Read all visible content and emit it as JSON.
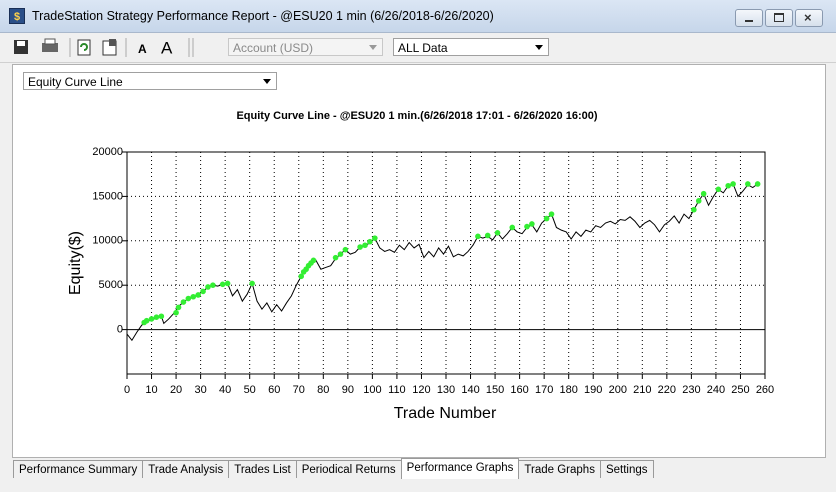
{
  "window": {
    "title": "TradeStation Strategy Performance Report - @ESU20 1 min (6/26/2018-6/26/2020)"
  },
  "toolbar": {
    "account": "Account (USD)",
    "range": "ALL Data"
  },
  "graph_selector": "Equity Curve Line",
  "tabs": [
    "Performance Summary",
    "Trade Analysis",
    "Trades List",
    "Periodical Returns",
    "Performance Graphs",
    "Trade Graphs",
    "Settings"
  ],
  "active_tab": 4,
  "chart_data": {
    "type": "line",
    "title": "Equity Curve Line - @ESU20 1 min.(6/26/2018 17:01 - 6/26/2020 16:00)",
    "x_label": "Trade Number",
    "y_label": "Equity($)",
    "xlim": [
      0,
      260
    ],
    "xticks": [
      0,
      10,
      20,
      30,
      40,
      50,
      60,
      70,
      80,
      90,
      100,
      110,
      120,
      130,
      140,
      150,
      160,
      170,
      180,
      190,
      200,
      210,
      220,
      230,
      240,
      250,
      260
    ],
    "ylim": [
      -5000,
      20000
    ],
    "yticks": [
      0,
      5000,
      10000,
      15000,
      20000
    ],
    "grid": true,
    "color": "#000000",
    "x": [
      0,
      2,
      4,
      6,
      8,
      10,
      12,
      14,
      15,
      17,
      19,
      21,
      23,
      25,
      27,
      29,
      31,
      33,
      35,
      37,
      39,
      41,
      43,
      45,
      47,
      49,
      51,
      53,
      55,
      57,
      59,
      61,
      63,
      65,
      67,
      69,
      71,
      73,
      75,
      77,
      79,
      81,
      83,
      85,
      87,
      89,
      91,
      93,
      95,
      97,
      99,
      101,
      103,
      105,
      107,
      109,
      111,
      113,
      115,
      117,
      119,
      121,
      123,
      125,
      127,
      129,
      131,
      133,
      135,
      137,
      139,
      141,
      143,
      145,
      147,
      149,
      151,
      153,
      155,
      157,
      159,
      161,
      163,
      165,
      167,
      169,
      171,
      173,
      175,
      177,
      179,
      181,
      183,
      185,
      187,
      189,
      191,
      193,
      195,
      197,
      199,
      201,
      203,
      205,
      207,
      209,
      211,
      213,
      215,
      217,
      219,
      221,
      223,
      225,
      227,
      229,
      231,
      233,
      235,
      237,
      239,
      241,
      243,
      245,
      247,
      249,
      251,
      253,
      255,
      257
    ],
    "values": [
      -500,
      -1200,
      -300,
      500,
      900,
      1100,
      1300,
      1500,
      700,
      1200,
      1800,
      2600,
      3100,
      3500,
      3700,
      4000,
      4300,
      4800,
      5000,
      4900,
      5100,
      5200,
      3800,
      4500,
      3200,
      4000,
      5200,
      3200,
      2300,
      3000,
      2000,
      2800,
      2100,
      3000,
      3800,
      5000,
      6000,
      6800,
      7500,
      7800,
      6800,
      7000,
      7200,
      8000,
      8500,
      9000,
      8500,
      8700,
      9300,
      9400,
      9800,
      10300,
      9200,
      8800,
      9000,
      8700,
      9500,
      9000,
      9800,
      9200,
      9600,
      8100,
      8800,
      8200,
      9200,
      8500,
      9400,
      8200,
      8500,
      8300,
      8800,
      9500,
      10500,
      10300,
      10500,
      10100,
      10900,
      10200,
      10800,
      11500,
      11000,
      10800,
      11500,
      11800,
      11000,
      12000,
      12500,
      13000,
      11500,
      11200,
      11000,
      10200,
      11000,
      10500,
      11200,
      11000,
      11700,
      11500,
      12000,
      12200,
      11900,
      12400,
      12300,
      12700,
      12200,
      11500,
      12000,
      12300,
      11800,
      11000,
      11800,
      12200,
      12800,
      12000,
      13000,
      12500,
      13500,
      14500,
      15300,
      14000,
      15000,
      15800,
      15400,
      16200,
      16400,
      15000,
      15600,
      16300,
      16000,
      16400
    ],
    "highlights": {
      "color": "#33ee33",
      "x": [
        7,
        8,
        10,
        12,
        14,
        20,
        21,
        23,
        25,
        27,
        29,
        31,
        33,
        35,
        39,
        41,
        51,
        71,
        72,
        73,
        74,
        75,
        76,
        85,
        87,
        89,
        95,
        97,
        99,
        101,
        143,
        147,
        151,
        157,
        163,
        165,
        171,
        173,
        231,
        233,
        235,
        241,
        245,
        247,
        253,
        257
      ],
      "values": [
        800,
        1000,
        1200,
        1400,
        1500,
        1900,
        2500,
        3100,
        3500,
        3700,
        3900,
        4300,
        4800,
        5000,
        5100,
        5200,
        5200,
        6000,
        6500,
        6800,
        7200,
        7500,
        7800,
        8100,
        8500,
        9000,
        9300,
        9500,
        9900,
        10300,
        10500,
        10600,
        10900,
        11500,
        11600,
        11900,
        12500,
        13000,
        13500,
        14500,
        15300,
        15800,
        16200,
        16400,
        16400,
        16400
      ]
    }
  }
}
